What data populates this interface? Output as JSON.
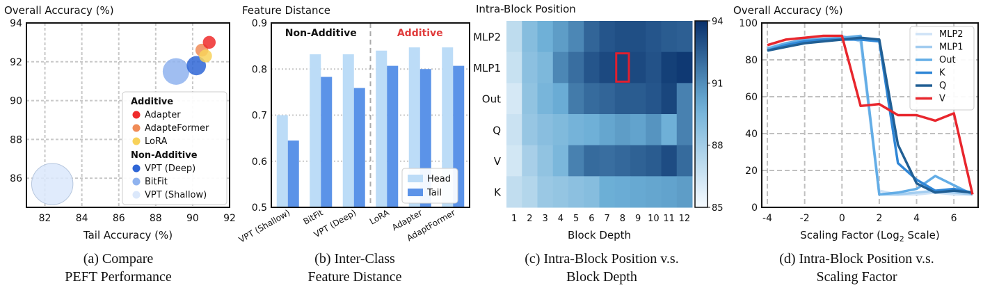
{
  "captions": [
    {
      "line1": "(a) Compare",
      "line2": "PEFT Performance"
    },
    {
      "line1": "(b) Inter-Class",
      "line2": "Feature Distance"
    },
    {
      "line1": "(c) Intra-Block Position v.s.",
      "line2": "Block Depth"
    },
    {
      "line1": "(d) Intra-Block Position v.s.",
      "line2": "Scaling Factor"
    }
  ],
  "chart_data": [
    {
      "type": "scatter",
      "title": "Overall Accuracy (%)",
      "xlabel": "Tail Accuracy (%)",
      "ylabel": "",
      "xlim": [
        81,
        92
      ],
      "ylim": [
        84.5,
        94
      ],
      "xticks": [
        82,
        84,
        86,
        88,
        90,
        92
      ],
      "yticks": [
        86,
        88,
        90,
        92,
        94
      ],
      "grid": true,
      "legend_position": "bottom-right",
      "legend_groups": [
        {
          "title": "Additive",
          "entries": [
            "Adapter",
            "AdapteFormer",
            "LoRA"
          ]
        },
        {
          "title": "Non-Additive",
          "entries": [
            "VPT (Deep)",
            "BitFit",
            "VPT (Shallow)"
          ]
        }
      ],
      "points": [
        {
          "name": "VPT (Shallow)",
          "x": 82.4,
          "y": 85.7,
          "size": 9.0,
          "color": "#dbe8fb"
        },
        {
          "name": "BitFit",
          "x": 89.1,
          "y": 91.5,
          "size": 5.8,
          "color": "#8fb3ef"
        },
        {
          "name": "VPT (Deep)",
          "x": 90.2,
          "y": 91.8,
          "size": 4.2,
          "color": "#2f66d6"
        },
        {
          "name": "AdapteFormer",
          "x": 90.5,
          "y": 92.6,
          "size": 2.8,
          "color": "#f08b57"
        },
        {
          "name": "LoRA",
          "x": 90.7,
          "y": 92.3,
          "size": 2.8,
          "color": "#f8d25a"
        },
        {
          "name": "Adapter",
          "x": 90.9,
          "y": 93.0,
          "size": 2.8,
          "color": "#ef2b2b"
        }
      ]
    },
    {
      "type": "bar",
      "title": "Feature Distance",
      "xlabel": "",
      "ylabel": "",
      "ylim": [
        0.5,
        0.9
      ],
      "yticks": [
        0.5,
        0.6,
        0.7,
        0.8,
        0.9
      ],
      "ytick_labels": [
        "0.5",
        "0.6",
        "0.7",
        "0.8",
        "0.9"
      ],
      "grid": true,
      "legend_position": "bottom-right",
      "group_labels": [
        {
          "text": "Non-Additive",
          "color": "#111111"
        },
        {
          "text": "Additive",
          "color": "#e03c3c"
        }
      ],
      "categories": [
        "VPT (Shallow)",
        "BitFit",
        "VPT (Deep)",
        "LoRA",
        "Adapter",
        "AdaptFormer"
      ],
      "series": [
        {
          "name": "Head",
          "color": "#bcdcf7",
          "values": [
            0.7,
            0.832,
            0.832,
            0.84,
            0.847,
            0.847
          ]
        },
        {
          "name": "Tail",
          "color": "#5b93e8",
          "values": [
            0.645,
            0.783,
            0.759,
            0.807,
            0.8,
            0.807
          ]
        }
      ]
    },
    {
      "type": "heatmap",
      "title": "Intra-Block Position",
      "xlabel": "Block Depth",
      "ylabel": "",
      "x": [
        "1",
        "2",
        "3",
        "4",
        "5",
        "6",
        "7",
        "8",
        "9",
        "10",
        "11",
        "12"
      ],
      "y": [
        "MLP2",
        "MLP1",
        "Out",
        "Q",
        "V",
        "K"
      ],
      "colorbar": {
        "min": 85,
        "max": 94,
        "ticks": [
          85,
          88,
          91,
          94
        ]
      },
      "highlight": {
        "row": "MLP1",
        "col": "8",
        "color": "#e02030"
      },
      "values": [
        [
          87.0,
          89.0,
          89.8,
          90.5,
          91.2,
          92.3,
          92.8,
          93.0,
          93.0,
          92.8,
          92.6,
          92.5
        ],
        [
          86.7,
          88.8,
          89.3,
          91.2,
          92.0,
          92.8,
          93.2,
          93.4,
          93.2,
          92.9,
          93.5,
          93.7
        ],
        [
          86.2,
          88.6,
          89.5,
          90.0,
          91.6,
          92.1,
          92.3,
          92.6,
          92.6,
          92.8,
          93.3,
          91.4
        ],
        [
          86.6,
          88.4,
          88.9,
          89.2,
          89.6,
          89.8,
          90.2,
          90.5,
          90.3,
          90.8,
          89.8,
          91.4
        ],
        [
          86.3,
          87.8,
          88.6,
          89.4,
          91.4,
          92.1,
          92.0,
          92.2,
          92.4,
          92.6,
          93.1,
          92.1
        ],
        [
          86.9,
          87.4,
          88.3,
          88.5,
          88.8,
          89.0,
          89.9,
          90.0,
          90.1,
          90.2,
          90.3,
          90.5
        ]
      ]
    },
    {
      "type": "line",
      "title": "Overall Accuracy (%)",
      "xlabel": "Scaling Factor (Log",
      "xlabel_sub": "2",
      "xlabel_end": " Scale)",
      "ylabel": "",
      "xlim": [
        -4.3,
        7.3
      ],
      "ylim": [
        0,
        100
      ],
      "xticks": [
        -4,
        -2,
        0,
        2,
        4,
        6
      ],
      "yticks": [
        0,
        20,
        40,
        60,
        80,
        100
      ],
      "grid": true,
      "legend_position": "top-right",
      "x": [
        -4,
        -3,
        -2,
        -1,
        0,
        1,
        2,
        3,
        4,
        5,
        6,
        7
      ],
      "series": [
        {
          "name": "MLP2",
          "color": "#cfe3f7",
          "values": [
            87,
            89,
            90,
            91,
            92,
            92,
            9,
            7,
            7,
            8,
            7,
            7
          ]
        },
        {
          "name": "MLP1",
          "color": "#a3cdf0",
          "values": [
            86,
            89,
            91,
            92,
            93,
            90,
            7,
            7,
            8,
            9,
            8,
            7
          ]
        },
        {
          "name": "Out",
          "color": "#63ade6",
          "values": [
            86,
            89,
            91,
            91,
            92,
            93,
            7,
            8,
            10,
            17,
            12,
            7
          ]
        },
        {
          "name": "K",
          "color": "#2f86d6",
          "values": [
            85,
            88,
            90,
            91,
            91,
            91,
            90,
            24,
            15,
            9,
            10,
            8
          ]
        },
        {
          "name": "Q",
          "color": "#215f94",
          "values": [
            85,
            87,
            89,
            90,
            91,
            92,
            91,
            34,
            13,
            8,
            9,
            8
          ]
        },
        {
          "name": "V",
          "color": "#e8262d",
          "values": [
            88,
            91,
            92,
            93,
            93,
            55,
            56,
            50,
            50,
            47,
            51,
            7
          ]
        }
      ]
    }
  ]
}
